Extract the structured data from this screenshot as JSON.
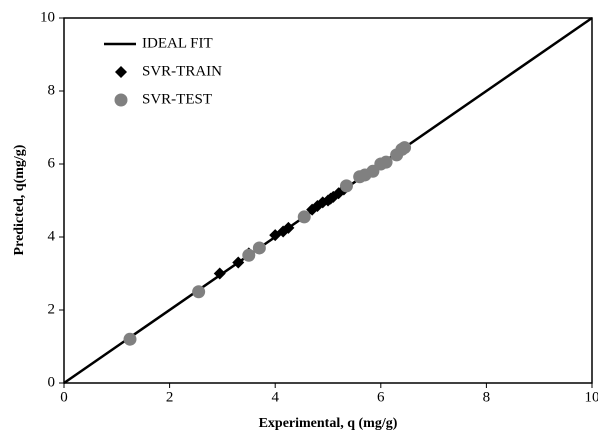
{
  "chart_data": {
    "type": "scatter",
    "x_label": "Experimental, q (mg/g)",
    "y_label": "Predicted, q(mg/g)",
    "xlim": [
      0,
      10
    ],
    "ylim": [
      0,
      10
    ],
    "xticks": [
      0,
      2,
      4,
      6,
      8,
      10
    ],
    "yticks": [
      0,
      2,
      4,
      6,
      8,
      10
    ],
    "grid": false,
    "legend": "upper-left",
    "series": [
      {
        "name": "IDEAL FIT",
        "color": "#000000",
        "marker": "line",
        "x": [
          0,
          10
        ],
        "values": [
          0,
          10
        ]
      },
      {
        "name": "SVR-TRAIN",
        "color": "#000000",
        "marker": "diamond",
        "x": [
          2.95,
          3.3,
          3.5,
          4.0,
          4.15,
          4.25,
          4.7,
          4.8,
          4.9,
          5.0,
          5.05,
          5.1,
          5.2,
          5.3
        ],
        "values": [
          3.0,
          3.3,
          3.55,
          4.05,
          4.15,
          4.25,
          4.75,
          4.85,
          4.95,
          5.0,
          5.05,
          5.1,
          5.2,
          5.3
        ]
      },
      {
        "name": "SVR-TEST",
        "color": "#808080",
        "marker": "circle",
        "x": [
          1.25,
          2.55,
          3.5,
          3.7,
          4.55,
          5.35,
          5.6,
          5.7,
          5.85,
          6.0,
          6.1,
          6.3,
          6.4,
          6.45
        ],
        "values": [
          1.2,
          2.5,
          3.5,
          3.7,
          4.55,
          5.4,
          5.65,
          5.7,
          5.8,
          6.0,
          6.05,
          6.25,
          6.4,
          6.45
        ]
      }
    ]
  }
}
